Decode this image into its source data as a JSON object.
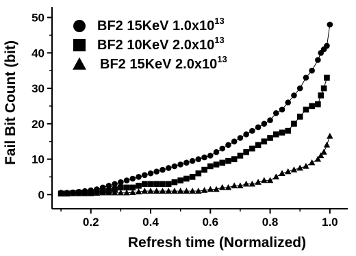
{
  "chart_data": {
    "type": "scatter",
    "xlabel": "Refresh time (Normalized)",
    "ylabel": "Fail Bit Count (bit)",
    "xlim": [
      0.07,
      1.06
    ],
    "ylim": [
      -4,
      53
    ],
    "xticks": [
      0.2,
      0.4,
      0.6,
      0.8,
      1.0
    ],
    "xtick_labels": [
      "0.2",
      "0.4",
      "0.6",
      "0.8",
      "1.0"
    ],
    "yticks": [
      0,
      10,
      20,
      30,
      40,
      50
    ],
    "ytick_labels": [
      "0",
      "10",
      "20",
      "30",
      "40",
      "50"
    ],
    "grid": false,
    "legend_position": "top-left",
    "series": [
      {
        "name_main": "BF2 15KeV 1.0x10",
        "name_sup": "13",
        "marker": "circle",
        "x": [
          0.1,
          0.12,
          0.14,
          0.16,
          0.18,
          0.2,
          0.22,
          0.24,
          0.26,
          0.28,
          0.3,
          0.32,
          0.34,
          0.36,
          0.38,
          0.4,
          0.42,
          0.44,
          0.46,
          0.48,
          0.5,
          0.52,
          0.54,
          0.56,
          0.58,
          0.6,
          0.62,
          0.64,
          0.66,
          0.68,
          0.7,
          0.72,
          0.74,
          0.76,
          0.78,
          0.8,
          0.82,
          0.84,
          0.86,
          0.88,
          0.9,
          0.92,
          0.94,
          0.96,
          0.97,
          0.98,
          0.99,
          1.0
        ],
        "y": [
          0.5,
          0.5,
          0.6,
          0.8,
          1,
          1.2,
          1.5,
          2,
          2.5,
          3,
          3.5,
          4,
          4.5,
          5,
          5.5,
          6,
          6.5,
          7,
          7.5,
          8,
          8.5,
          9,
          9.5,
          10,
          10.5,
          11,
          12,
          13,
          14,
          15,
          16,
          17,
          18,
          19,
          20,
          21,
          23,
          24,
          26,
          28,
          30,
          33,
          35,
          38,
          40,
          41,
          42,
          48
        ]
      },
      {
        "name_main": "BF2 10KeV 2.0x10",
        "name_sup": "13",
        "marker": "square",
        "x": [
          0.1,
          0.12,
          0.14,
          0.16,
          0.18,
          0.2,
          0.22,
          0.24,
          0.26,
          0.28,
          0.3,
          0.32,
          0.34,
          0.36,
          0.38,
          0.4,
          0.42,
          0.44,
          0.46,
          0.48,
          0.5,
          0.52,
          0.54,
          0.56,
          0.58,
          0.6,
          0.62,
          0.64,
          0.66,
          0.68,
          0.7,
          0.72,
          0.74,
          0.76,
          0.78,
          0.8,
          0.82,
          0.84,
          0.86,
          0.88,
          0.9,
          0.92,
          0.94,
          0.96,
          0.97,
          0.98,
          0.99
        ],
        "y": [
          0.3,
          0.3,
          0.4,
          0.5,
          0.5,
          0.6,
          0.8,
          1,
          1,
          1.5,
          2,
          2,
          2,
          2.5,
          3,
          3,
          3,
          3,
          3,
          3.5,
          4,
          4.5,
          5,
          6,
          7,
          8,
          8.5,
          9,
          9.5,
          10,
          11,
          12,
          13,
          14,
          15,
          16,
          17,
          17.5,
          18,
          20,
          22,
          24,
          25,
          25.5,
          28,
          30,
          33
        ]
      },
      {
        "name_main": "BF2 15KeV 2.0x10",
        "name_sup": "13",
        "marker": "triangle",
        "x": [
          0.1,
          0.12,
          0.14,
          0.16,
          0.18,
          0.2,
          0.22,
          0.24,
          0.26,
          0.28,
          0.3,
          0.32,
          0.34,
          0.36,
          0.38,
          0.4,
          0.42,
          0.44,
          0.46,
          0.48,
          0.5,
          0.52,
          0.54,
          0.56,
          0.58,
          0.6,
          0.62,
          0.64,
          0.66,
          0.68,
          0.7,
          0.72,
          0.74,
          0.76,
          0.78,
          0.8,
          0.82,
          0.84,
          0.86,
          0.88,
          0.9,
          0.92,
          0.94,
          0.96,
          0.97,
          0.98,
          0.99,
          1.0
        ],
        "y": [
          0.3,
          0.3,
          0.3,
          0.3,
          0.3,
          0.3,
          0.4,
          0.5,
          0.5,
          0.5,
          0.5,
          0.5,
          0.6,
          0.8,
          1,
          1,
          1,
          1,
          1,
          1,
          1,
          1,
          1,
          1,
          1.2,
          1.5,
          1.5,
          2,
          2,
          2.5,
          2.5,
          3,
          3,
          3.5,
          4,
          4,
          5,
          6,
          6.5,
          7,
          7.5,
          8,
          9,
          10,
          11,
          12,
          14,
          16.5
        ]
      }
    ]
  }
}
